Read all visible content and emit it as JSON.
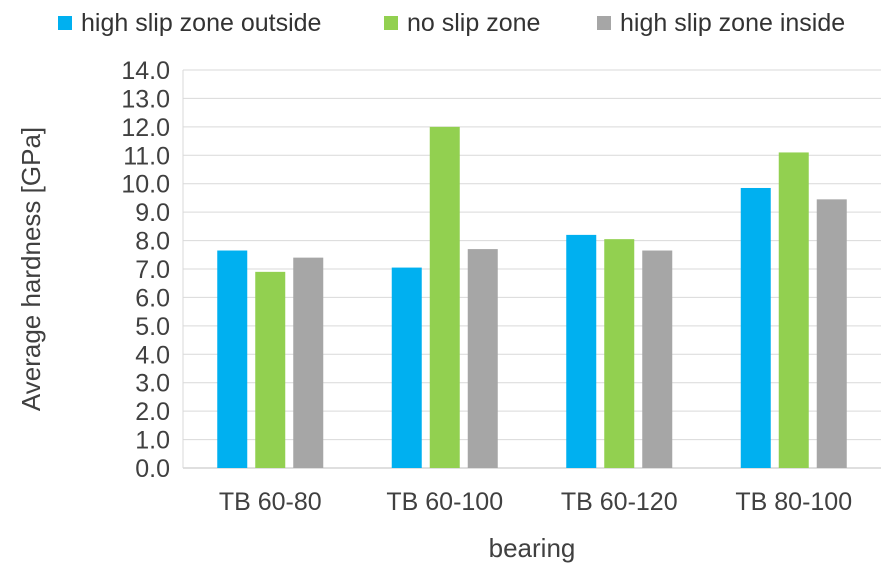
{
  "chart_data": {
    "type": "bar",
    "title": "",
    "xlabel": "bearing",
    "ylabel": "Average hardness [GPa]",
    "ylim": [
      0,
      14
    ],
    "ytick_step": 1,
    "yticks": [
      "0.0",
      "1.0",
      "2.0",
      "3.0",
      "4.0",
      "5.0",
      "6.0",
      "7.0",
      "8.0",
      "9.0",
      "10.0",
      "11.0",
      "12.0",
      "13.0",
      "14.0"
    ],
    "grid": "horizontal",
    "legend_position": "top",
    "categories": [
      "TB 60-80",
      "TB 60-100",
      "TB 60-120",
      "TB 80-100"
    ],
    "series": [
      {
        "name": "high slip zone outside",
        "color": "#00B0F0",
        "values": [
          7.65,
          7.05,
          8.2,
          9.85
        ]
      },
      {
        "name": "no slip zone",
        "color": "#92D050",
        "values": [
          6.9,
          12.0,
          8.05,
          11.1
        ]
      },
      {
        "name": "high slip zone inside",
        "color": "#A6A6A6",
        "values": [
          7.4,
          7.7,
          7.65,
          9.45
        ]
      }
    ]
  }
}
